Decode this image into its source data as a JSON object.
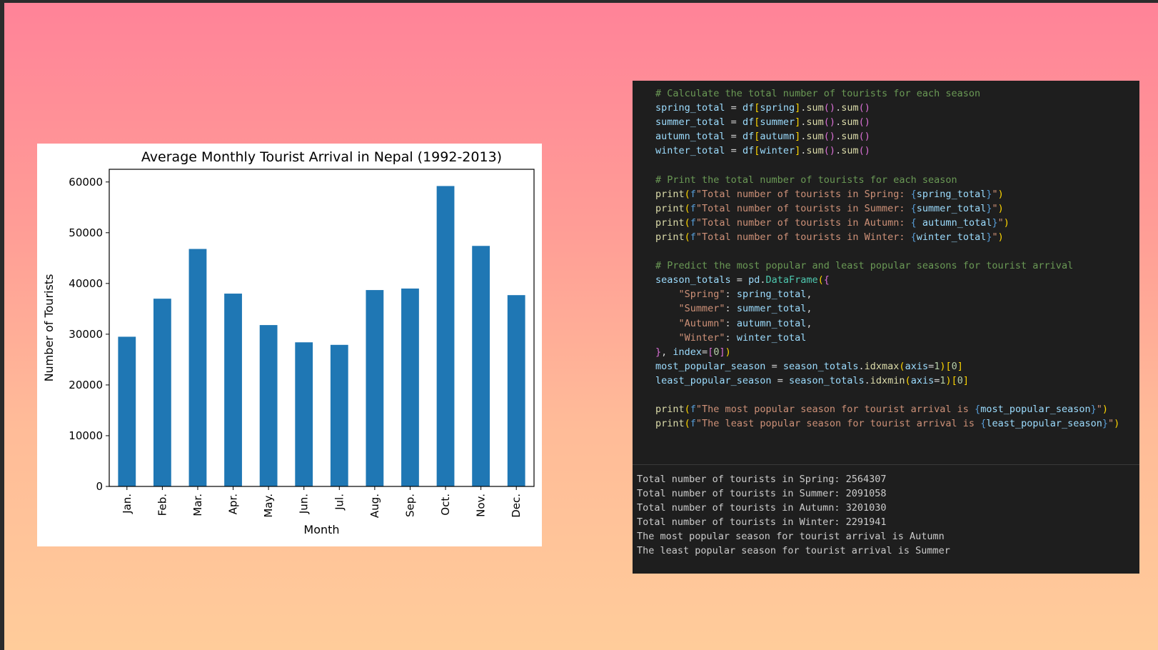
{
  "chart_data": {
    "type": "bar",
    "title": "Average Monthly Tourist Arrival in Nepal (1992-2013)",
    "xlabel": "Month",
    "ylabel": "Number of Tourists",
    "categories": [
      "Jan.",
      "Feb.",
      "Mar.",
      "Apr.",
      "May.",
      "Jun.",
      "Jul.",
      "Aug.",
      "Sep.",
      "Oct.",
      "Nov.",
      "Dec."
    ],
    "values": [
      29500,
      37000,
      46800,
      38000,
      31800,
      28400,
      27900,
      38700,
      39000,
      59200,
      47400,
      37700
    ],
    "ylim": [
      0,
      62500
    ],
    "yticks": [
      0,
      10000,
      20000,
      30000,
      40000,
      50000,
      60000
    ],
    "bar_color": "#1f77b4",
    "grid": false,
    "legend": "none"
  },
  "code": {
    "lines": [
      [
        [
          "c-comment",
          "# Calculate the total number of tourists for each season"
        ]
      ],
      [
        [
          "c-var",
          "spring_total"
        ],
        [
          "c-op",
          " = "
        ],
        [
          "c-var",
          "df"
        ],
        [
          "c-b1",
          "["
        ],
        [
          "c-var",
          "spring"
        ],
        [
          "c-b1",
          "]"
        ],
        [
          "c-op",
          "."
        ],
        [
          "c-fn",
          "sum"
        ],
        [
          "c-b2",
          "()"
        ],
        [
          "c-op",
          "."
        ],
        [
          "c-fn",
          "sum"
        ],
        [
          "c-b2",
          "()"
        ]
      ],
      [
        [
          "c-var",
          "summer_total"
        ],
        [
          "c-op",
          " = "
        ],
        [
          "c-var",
          "df"
        ],
        [
          "c-b1",
          "["
        ],
        [
          "c-var",
          "summer"
        ],
        [
          "c-b1",
          "]"
        ],
        [
          "c-op",
          "."
        ],
        [
          "c-fn",
          "sum"
        ],
        [
          "c-b2",
          "()"
        ],
        [
          "c-op",
          "."
        ],
        [
          "c-fn",
          "sum"
        ],
        [
          "c-b2",
          "()"
        ]
      ],
      [
        [
          "c-var",
          "autumn_total"
        ],
        [
          "c-op",
          " = "
        ],
        [
          "c-var",
          "df"
        ],
        [
          "c-b1",
          "["
        ],
        [
          "c-var",
          "autumn"
        ],
        [
          "c-b1",
          "]"
        ],
        [
          "c-op",
          "."
        ],
        [
          "c-fn",
          "sum"
        ],
        [
          "c-b2",
          "()"
        ],
        [
          "c-op",
          "."
        ],
        [
          "c-fn",
          "sum"
        ],
        [
          "c-b2",
          "()"
        ]
      ],
      [
        [
          "c-var",
          "winter_total"
        ],
        [
          "c-op",
          " = "
        ],
        [
          "c-var",
          "df"
        ],
        [
          "c-b1",
          "["
        ],
        [
          "c-var",
          "winter"
        ],
        [
          "c-b1",
          "]"
        ],
        [
          "c-op",
          "."
        ],
        [
          "c-fn",
          "sum"
        ],
        [
          "c-b2",
          "()"
        ],
        [
          "c-op",
          "."
        ],
        [
          "c-fn",
          "sum"
        ],
        [
          "c-b2",
          "()"
        ]
      ],
      [],
      [
        [
          "c-comment",
          "# Print the total number of tourists for each season"
        ]
      ],
      [
        [
          "c-fn",
          "print"
        ],
        [
          "c-b1",
          "("
        ],
        [
          "c-kw",
          "f"
        ],
        [
          "c-str",
          "\"Total number of tourists in Spring: "
        ],
        [
          "c-kw",
          "{"
        ],
        [
          "c-var",
          "spring_total"
        ],
        [
          "c-kw",
          "}"
        ],
        [
          "c-str",
          "\""
        ],
        [
          "c-b1",
          ")"
        ]
      ],
      [
        [
          "c-fn",
          "print"
        ],
        [
          "c-b1",
          "("
        ],
        [
          "c-kw",
          "f"
        ],
        [
          "c-str",
          "\"Total number of tourists in Summer: "
        ],
        [
          "c-kw",
          "{"
        ],
        [
          "c-var",
          "summer_total"
        ],
        [
          "c-kw",
          "}"
        ],
        [
          "c-str",
          "\""
        ],
        [
          "c-b1",
          ")"
        ]
      ],
      [
        [
          "c-fn",
          "print"
        ],
        [
          "c-b1",
          "("
        ],
        [
          "c-kw",
          "f"
        ],
        [
          "c-str",
          "\"Total number of tourists in Autumn: "
        ],
        [
          "c-kw",
          "{"
        ],
        [
          "c-var",
          " autumn_total"
        ],
        [
          "c-kw",
          "}"
        ],
        [
          "c-str",
          "\""
        ],
        [
          "c-b1",
          ")"
        ]
      ],
      [
        [
          "c-fn",
          "print"
        ],
        [
          "c-b1",
          "("
        ],
        [
          "c-kw",
          "f"
        ],
        [
          "c-str",
          "\"Total number of tourists in Winter: "
        ],
        [
          "c-kw",
          "{"
        ],
        [
          "c-var",
          "winter_total"
        ],
        [
          "c-kw",
          "}"
        ],
        [
          "c-str",
          "\""
        ],
        [
          "c-b1",
          ")"
        ]
      ],
      [],
      [
        [
          "c-comment",
          "# Predict the most popular and least popular seasons for tourist arrival"
        ]
      ],
      [
        [
          "c-var",
          "season_totals"
        ],
        [
          "c-op",
          " = "
        ],
        [
          "c-var",
          "pd"
        ],
        [
          "c-op",
          "."
        ],
        [
          "c-cls",
          "DataFrame"
        ],
        [
          "c-b1",
          "("
        ],
        [
          "c-b2",
          "{"
        ]
      ],
      [
        [
          "c-op",
          "    "
        ],
        [
          "c-str",
          "\"Spring\""
        ],
        [
          "c-op",
          ": "
        ],
        [
          "c-var",
          "spring_total"
        ],
        [
          "c-op",
          ","
        ]
      ],
      [
        [
          "c-op",
          "    "
        ],
        [
          "c-str",
          "\"Summer\""
        ],
        [
          "c-op",
          ": "
        ],
        [
          "c-var",
          "summer_total"
        ],
        [
          "c-op",
          ","
        ]
      ],
      [
        [
          "c-op",
          "    "
        ],
        [
          "c-str",
          "\"Autumn\""
        ],
        [
          "c-op",
          ": "
        ],
        [
          "c-var",
          "autumn_total"
        ],
        [
          "c-op",
          ","
        ]
      ],
      [
        [
          "c-op",
          "    "
        ],
        [
          "c-str",
          "\"Winter\""
        ],
        [
          "c-op",
          ": "
        ],
        [
          "c-var",
          "winter_total"
        ]
      ],
      [
        [
          "c-b2",
          "}"
        ],
        [
          "c-op",
          ", "
        ],
        [
          "c-var",
          "index"
        ],
        [
          "c-op",
          "="
        ],
        [
          "c-b2",
          "["
        ],
        [
          "c-num",
          "0"
        ],
        [
          "c-b2",
          "]"
        ],
        [
          "c-b1",
          ")"
        ]
      ],
      [
        [
          "c-var",
          "most_popular_season"
        ],
        [
          "c-op",
          " = "
        ],
        [
          "c-var",
          "season_totals"
        ],
        [
          "c-op",
          "."
        ],
        [
          "c-fn",
          "idxmax"
        ],
        [
          "c-b1",
          "("
        ],
        [
          "c-var",
          "axis"
        ],
        [
          "c-op",
          "="
        ],
        [
          "c-num",
          "1"
        ],
        [
          "c-b1",
          ")"
        ],
        [
          "c-b1",
          "["
        ],
        [
          "c-num",
          "0"
        ],
        [
          "c-b1",
          "]"
        ]
      ],
      [
        [
          "c-var",
          "least_popular_season"
        ],
        [
          "c-op",
          " = "
        ],
        [
          "c-var",
          "season_totals"
        ],
        [
          "c-op",
          "."
        ],
        [
          "c-fn",
          "idxmin"
        ],
        [
          "c-b1",
          "("
        ],
        [
          "c-var",
          "axis"
        ],
        [
          "c-op",
          "="
        ],
        [
          "c-num",
          "1"
        ],
        [
          "c-b1",
          ")"
        ],
        [
          "c-b1",
          "["
        ],
        [
          "c-num",
          "0"
        ],
        [
          "c-b1",
          "]"
        ]
      ],
      [],
      [
        [
          "c-fn",
          "print"
        ],
        [
          "c-b1",
          "("
        ],
        [
          "c-kw",
          "f"
        ],
        [
          "c-str",
          "\"The most popular season for tourist arrival is "
        ],
        [
          "c-kw",
          "{"
        ],
        [
          "c-var",
          "most_popular_season"
        ],
        [
          "c-kw",
          "}"
        ],
        [
          "c-str",
          "\""
        ],
        [
          "c-b1",
          ")"
        ]
      ],
      [
        [
          "c-fn",
          "print"
        ],
        [
          "c-b1",
          "("
        ],
        [
          "c-kw",
          "f"
        ],
        [
          "c-str",
          "\"The least popular season for tourist arrival is "
        ],
        [
          "c-kw",
          "{"
        ],
        [
          "c-var",
          "least_popular_season"
        ],
        [
          "c-kw",
          "}"
        ],
        [
          "c-str",
          "\""
        ],
        [
          "c-b1",
          ")"
        ]
      ]
    ]
  },
  "output": {
    "lines": [
      "Total number of tourists in Spring: 2564307",
      "Total number of tourists in Summer: 2091058",
      "Total number of tourists in Autumn: 3201030",
      "Total number of tourists in Winter: 2291941",
      "The most popular season for tourist arrival is Autumn",
      "The least popular season for tourist arrival is Summer"
    ]
  }
}
